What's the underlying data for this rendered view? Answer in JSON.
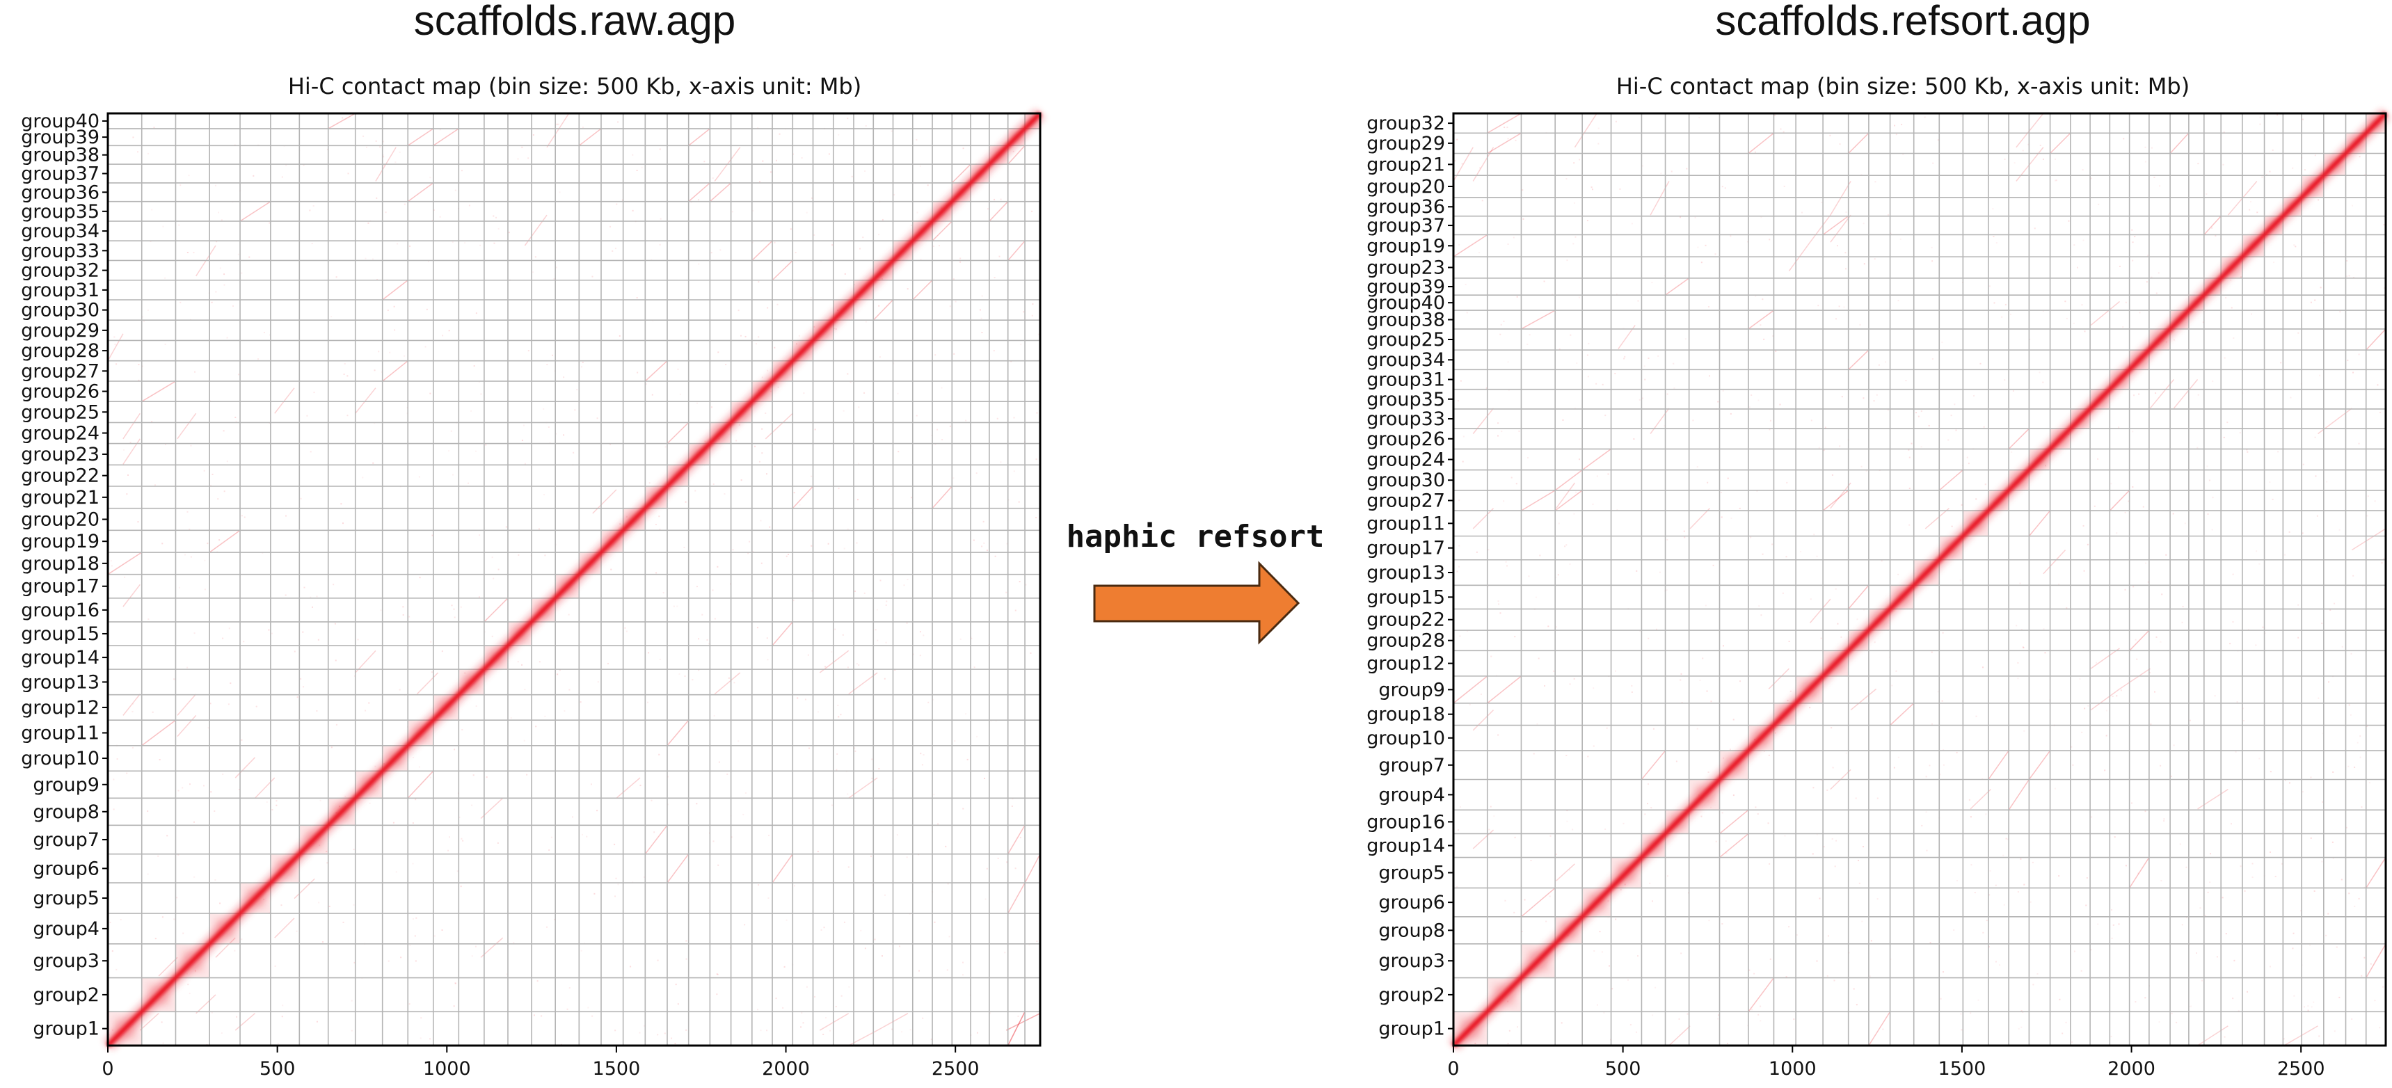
{
  "colors": {
    "grid": "#b4b4b4",
    "signal": "#e8101a",
    "frame": "#000000",
    "arrow_fill": "#ee7d31",
    "arrow_stroke": "#4a2a10"
  },
  "arrow": {
    "label": "haphic refsort"
  },
  "chart_data": [
    {
      "type": "heatmap",
      "title": "scaffolds.raw.agp",
      "subtitle": "Hi-C contact map (bin size: 500 Kb, x-axis unit: Mb)",
      "xlim": [
        0,
        2750
      ],
      "x_ticks": [
        0,
        500,
        1000,
        1500,
        2000,
        2500
      ],
      "x_tick_labels": [
        "0",
        "500",
        "1000",
        "1500",
        "2000",
        "2500"
      ],
      "groups": [
        {
          "name": "group1",
          "start": 0,
          "end": 100
        },
        {
          "name": "group2",
          "start": 100,
          "end": 200
        },
        {
          "name": "group3",
          "start": 200,
          "end": 300
        },
        {
          "name": "group4",
          "start": 300,
          "end": 390
        },
        {
          "name": "group5",
          "start": 390,
          "end": 480
        },
        {
          "name": "group6",
          "start": 480,
          "end": 565
        },
        {
          "name": "group7",
          "start": 565,
          "end": 650
        },
        {
          "name": "group8",
          "start": 650,
          "end": 730
        },
        {
          "name": "group9",
          "start": 730,
          "end": 810
        },
        {
          "name": "group10",
          "start": 810,
          "end": 885
        },
        {
          "name": "group11",
          "start": 885,
          "end": 960
        },
        {
          "name": "group12",
          "start": 960,
          "end": 1035
        },
        {
          "name": "group13",
          "start": 1035,
          "end": 1110
        },
        {
          "name": "group14",
          "start": 1110,
          "end": 1180
        },
        {
          "name": "group15",
          "start": 1180,
          "end": 1250
        },
        {
          "name": "group16",
          "start": 1250,
          "end": 1320
        },
        {
          "name": "group17",
          "start": 1320,
          "end": 1390
        },
        {
          "name": "group18",
          "start": 1390,
          "end": 1455
        },
        {
          "name": "group19",
          "start": 1455,
          "end": 1520
        },
        {
          "name": "group20",
          "start": 1520,
          "end": 1585
        },
        {
          "name": "group21",
          "start": 1585,
          "end": 1650
        },
        {
          "name": "group22",
          "start": 1650,
          "end": 1713
        },
        {
          "name": "group23",
          "start": 1713,
          "end": 1776
        },
        {
          "name": "group24",
          "start": 1776,
          "end": 1838
        },
        {
          "name": "group25",
          "start": 1838,
          "end": 1900
        },
        {
          "name": "group26",
          "start": 1900,
          "end": 1960
        },
        {
          "name": "group27",
          "start": 1960,
          "end": 2020
        },
        {
          "name": "group28",
          "start": 2020,
          "end": 2080
        },
        {
          "name": "group29",
          "start": 2080,
          "end": 2140
        },
        {
          "name": "group30",
          "start": 2140,
          "end": 2200
        },
        {
          "name": "group31",
          "start": 2200,
          "end": 2258
        },
        {
          "name": "group32",
          "start": 2258,
          "end": 2316
        },
        {
          "name": "group33",
          "start": 2316,
          "end": 2374
        },
        {
          "name": "group34",
          "start": 2374,
          "end": 2432
        },
        {
          "name": "group35",
          "start": 2432,
          "end": 2490
        },
        {
          "name": "group36",
          "start": 2490,
          "end": 2545
        },
        {
          "name": "group37",
          "start": 2545,
          "end": 2600
        },
        {
          "name": "group38",
          "start": 2600,
          "end": 2655
        },
        {
          "name": "group39",
          "start": 2655,
          "end": 2705
        },
        {
          "name": "group40",
          "start": 2705,
          "end": 2750
        }
      ]
    },
    {
      "type": "heatmap",
      "title": "scaffolds.refsort.agp",
      "subtitle": "Hi-C contact map (bin size: 500 Kb, x-axis unit: Mb)",
      "xlim": [
        0,
        2750
      ],
      "x_ticks": [
        0,
        500,
        1000,
        1500,
        2000,
        2500
      ],
      "x_tick_labels": [
        "0",
        "500",
        "1000",
        "1500",
        "2000",
        "2500"
      ],
      "groups": [
        {
          "name": "group1",
          "start": 0,
          "end": 100
        },
        {
          "name": "group2",
          "start": 100,
          "end": 200
        },
        {
          "name": "group3",
          "start": 200,
          "end": 300
        },
        {
          "name": "group8",
          "start": 300,
          "end": 380
        },
        {
          "name": "group6",
          "start": 380,
          "end": 465
        },
        {
          "name": "group5",
          "start": 465,
          "end": 555
        },
        {
          "name": "group14",
          "start": 555,
          "end": 625
        },
        {
          "name": "group16",
          "start": 625,
          "end": 695
        },
        {
          "name": "group4",
          "start": 695,
          "end": 785
        },
        {
          "name": "group7",
          "start": 785,
          "end": 870
        },
        {
          "name": "group10",
          "start": 870,
          "end": 945
        },
        {
          "name": "group18",
          "start": 945,
          "end": 1010
        },
        {
          "name": "group9",
          "start": 1010,
          "end": 1090
        },
        {
          "name": "group12",
          "start": 1090,
          "end": 1165
        },
        {
          "name": "group28",
          "start": 1165,
          "end": 1225
        },
        {
          "name": "group22",
          "start": 1225,
          "end": 1288
        },
        {
          "name": "group15",
          "start": 1288,
          "end": 1358
        },
        {
          "name": "group13",
          "start": 1358,
          "end": 1433
        },
        {
          "name": "group17",
          "start": 1433,
          "end": 1503
        },
        {
          "name": "group11",
          "start": 1503,
          "end": 1578
        },
        {
          "name": "group27",
          "start": 1578,
          "end": 1638
        },
        {
          "name": "group30",
          "start": 1638,
          "end": 1698
        },
        {
          "name": "group24",
          "start": 1698,
          "end": 1760
        },
        {
          "name": "group26",
          "start": 1760,
          "end": 1820
        },
        {
          "name": "group33",
          "start": 1820,
          "end": 1878
        },
        {
          "name": "group35",
          "start": 1878,
          "end": 1936
        },
        {
          "name": "group31",
          "start": 1936,
          "end": 1994
        },
        {
          "name": "group34",
          "start": 1994,
          "end": 2052
        },
        {
          "name": "group25",
          "start": 2052,
          "end": 2114
        },
        {
          "name": "group38",
          "start": 2114,
          "end": 2169
        },
        {
          "name": "group40",
          "start": 2169,
          "end": 2214
        },
        {
          "name": "group39",
          "start": 2214,
          "end": 2264
        },
        {
          "name": "group23",
          "start": 2264,
          "end": 2327
        },
        {
          "name": "group19",
          "start": 2327,
          "end": 2392
        },
        {
          "name": "group37",
          "start": 2392,
          "end": 2447
        },
        {
          "name": "group36",
          "start": 2447,
          "end": 2502
        },
        {
          "name": "group20",
          "start": 2502,
          "end": 2567
        },
        {
          "name": "group21",
          "start": 2567,
          "end": 2632
        },
        {
          "name": "group29",
          "start": 2632,
          "end": 2692
        },
        {
          "name": "group32",
          "start": 2692,
          "end": 2750
        }
      ]
    }
  ]
}
